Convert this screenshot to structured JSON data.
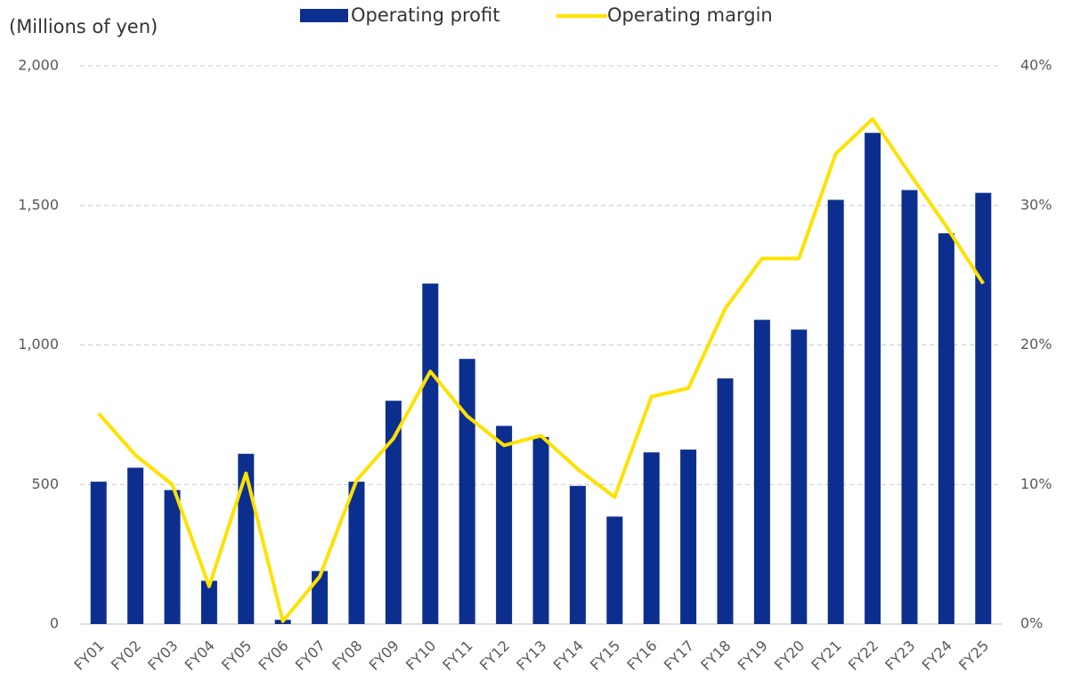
{
  "chart_data": {
    "type": "bar-line",
    "title": "(Millions of yen)",
    "categories": [
      "FY01",
      "FY02",
      "FY03",
      "FY04",
      "FY05",
      "FY06",
      "FY07",
      "FY08",
      "FY09",
      "FY10",
      "FY11",
      "FY12",
      "FY13",
      "FY14",
      "FY15",
      "FY16",
      "FY17",
      "FY18",
      "FY19",
      "FY20",
      "FY21",
      "FY22",
      "FY23",
      "FY24",
      "FY25"
    ],
    "series": [
      {
        "name": "Operating profit",
        "type": "bar",
        "color": "#0c2f8f",
        "values": [
          510,
          560,
          480,
          155,
          610,
          15,
          190,
          510,
          800,
          1220,
          950,
          710,
          670,
          495,
          385,
          615,
          625,
          880,
          1090,
          1055,
          1520,
          1760,
          1555,
          1400,
          1545
        ]
      },
      {
        "name": "Operating margin",
        "type": "line",
        "axis": "y2",
        "color": "#ffe100",
        "values": [
          15.1,
          12.1,
          10.0,
          2.7,
          10.8,
          0.2,
          3.4,
          10.3,
          13.3,
          18.1,
          14.9,
          12.8,
          13.5,
          11.1,
          9.1,
          16.3,
          16.9,
          22.6,
          26.2,
          26.2,
          33.7,
          36.2,
          32.3,
          28.5,
          24.4
        ]
      }
    ],
    "ylim": [
      0,
      2000
    ],
    "yticks": [
      0,
      500,
      {
        "value": 1000,
        "label": "1,000"
      },
      {
        "value": 1500,
        "label": "1,500"
      },
      {
        "value": 2000,
        "label": "2,000"
      }
    ],
    "y2lim": [
      0,
      40
    ],
    "y2ticks": [
      {
        "value": 0,
        "label": "0%"
      },
      {
        "value": 10,
        "label": "10%"
      },
      {
        "value": 20,
        "label": "20%"
      },
      {
        "value": 30,
        "label": "30%"
      },
      {
        "value": 40,
        "label": "40%"
      }
    ],
    "grid": true,
    "legend": "top"
  }
}
